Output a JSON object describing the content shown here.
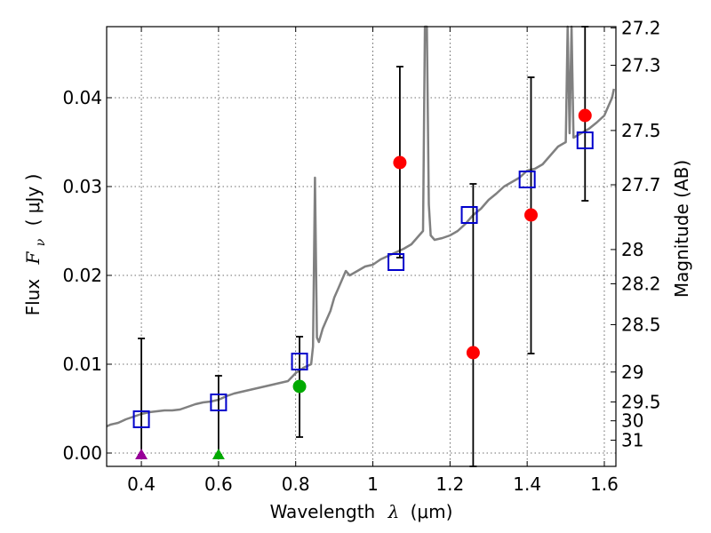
{
  "chart_data": {
    "type": "scatter",
    "xlabel": "Wavelength  λ (μm)",
    "ylabel": "Flux  F_ν  ( μJy )",
    "ylabel_parts": {
      "prefix": "Flux",
      "symbol": "F",
      "sub": "ν",
      "unit": "( μJy )"
    },
    "xlabel_parts": {
      "prefix": "Wavelength",
      "symbol": "λ",
      "unit": "(μm)"
    },
    "right_label": "Magnitude (AB)",
    "xlim": [
      0.31,
      1.63
    ],
    "ylim": [
      -0.0015,
      0.048
    ],
    "grid": true,
    "x_ticks": [
      0.4,
      0.6,
      0.8,
      1.0,
      1.2,
      1.4,
      1.6
    ],
    "x_tick_labels": [
      "0.4",
      "0.6",
      "0.8",
      "1",
      "1.2",
      "1.4",
      "1.6"
    ],
    "y_ticks": [
      0.0,
      0.01,
      0.02,
      0.03,
      0.04
    ],
    "y_tick_labels": [
      "0.00",
      "0.01",
      "0.02",
      "0.03",
      "0.04"
    ],
    "mag_ticks": [
      27.2,
      27.3,
      27.5,
      27.7,
      28,
      28.2,
      28.5,
      29,
      29.5,
      30,
      31
    ],
    "mag_tick_labels": [
      "27.2",
      "27.3",
      "27.5",
      "27.7",
      "28",
      "28.2",
      "28.5",
      "29",
      "29.5",
      "30",
      "31"
    ],
    "colors": {
      "model": "#808080",
      "model_photometry": "#0000cc",
      "measured": "#ff0000",
      "upper_limit_blue": "#990099",
      "upper_limit_green": "#00aa00",
      "error_bar": "#000000"
    },
    "model_spectrum": {
      "name": "SED model",
      "x": [
        0.31,
        0.32,
        0.34,
        0.36,
        0.38,
        0.4,
        0.42,
        0.44,
        0.46,
        0.48,
        0.5,
        0.52,
        0.54,
        0.56,
        0.58,
        0.6,
        0.62,
        0.64,
        0.66,
        0.68,
        0.7,
        0.72,
        0.74,
        0.76,
        0.78,
        0.8,
        0.81,
        0.82,
        0.83,
        0.84,
        0.845,
        0.85,
        0.855,
        0.86,
        0.87,
        0.88,
        0.89,
        0.9,
        0.91,
        0.92,
        0.93,
        0.94,
        0.96,
        0.98,
        1.0,
        1.02,
        1.04,
        1.06,
        1.08,
        1.1,
        1.12,
        1.13,
        1.135,
        1.14,
        1.145,
        1.15,
        1.16,
        1.18,
        1.2,
        1.22,
        1.24,
        1.26,
        1.28,
        1.3,
        1.32,
        1.34,
        1.36,
        1.38,
        1.4,
        1.42,
        1.44,
        1.46,
        1.48,
        1.5,
        1.505,
        1.51,
        1.515,
        1.52,
        1.54,
        1.56,
        1.58,
        1.6,
        1.61,
        1.62,
        1.625
      ],
      "y": [
        0.003,
        0.0032,
        0.0034,
        0.0038,
        0.0041,
        0.0044,
        0.0046,
        0.0047,
        0.0048,
        0.0048,
        0.0049,
        0.0052,
        0.0055,
        0.0057,
        0.0058,
        0.006,
        0.0064,
        0.0067,
        0.0069,
        0.0071,
        0.0073,
        0.0075,
        0.0077,
        0.0079,
        0.0081,
        0.009,
        0.0093,
        0.0096,
        0.0098,
        0.01,
        0.012,
        0.031,
        0.013,
        0.0125,
        0.014,
        0.015,
        0.016,
        0.0175,
        0.0185,
        0.0195,
        0.0205,
        0.02,
        0.0205,
        0.021,
        0.0212,
        0.0218,
        0.0222,
        0.0226,
        0.023,
        0.0235,
        0.0245,
        0.025,
        0.048,
        0.048,
        0.028,
        0.0245,
        0.024,
        0.0242,
        0.0245,
        0.025,
        0.0258,
        0.0268,
        0.0275,
        0.0285,
        0.0292,
        0.03,
        0.0305,
        0.031,
        0.0318,
        0.032,
        0.0325,
        0.0335,
        0.0345,
        0.035,
        0.048,
        0.036,
        0.048,
        0.0355,
        0.036,
        0.0365,
        0.0372,
        0.038,
        0.039,
        0.04,
        0.041
      ]
    },
    "model_photometry": {
      "name": "model photometry",
      "marker": "square",
      "x": [
        0.4,
        0.6,
        0.81,
        1.06,
        1.25,
        1.4,
        1.55
      ],
      "y": [
        0.0038,
        0.0057,
        0.0103,
        0.0215,
        0.0268,
        0.0308,
        0.0352
      ]
    },
    "measured_points": [
      {
        "x": 0.81,
        "y": 0.0075,
        "color": "#00aa00",
        "err_lo": 0.0018,
        "err_hi": 0.0131
      },
      {
        "x": 1.07,
        "y": 0.0327,
        "color": "#ff0000",
        "err_lo": 0.022,
        "err_hi": 0.0435
      },
      {
        "x": 1.26,
        "y": 0.0113,
        "color": "#ff0000",
        "err_lo": -0.0015,
        "err_hi": 0.0303
      },
      {
        "x": 1.41,
        "y": 0.0268,
        "color": "#ff0000",
        "err_lo": 0.0112,
        "err_hi": 0.0423
      },
      {
        "x": 1.55,
        "y": 0.038,
        "color": "#ff0000",
        "err_lo": 0.0284,
        "err_hi": 0.048
      }
    ],
    "upper_limits": [
      {
        "x": 0.4,
        "y": -0.0002,
        "color": "#990099",
        "err_lo": -0.0002,
        "err_hi": 0.0129
      },
      {
        "x": 0.6,
        "y": -0.0002,
        "color": "#00aa00",
        "err_lo": -0.0002,
        "err_hi": 0.0087
      }
    ]
  }
}
